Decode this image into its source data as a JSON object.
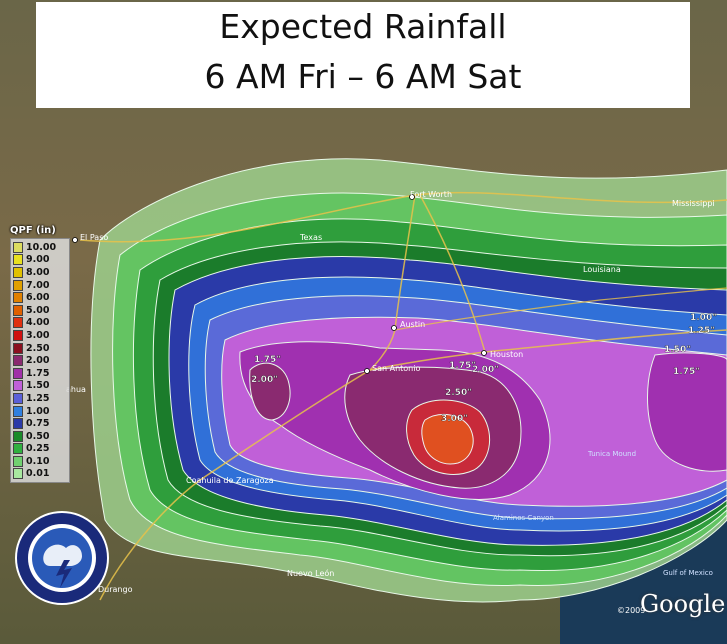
{
  "title": {
    "line1": "Expected Rainfall",
    "line2": "6 AM Fri – 6 AM Sat"
  },
  "legend": {
    "title": "QPF (in)",
    "levels": [
      {
        "label": "10.00",
        "color": "#dcdc60"
      },
      {
        "label": "9.00",
        "color": "#e8e020"
      },
      {
        "label": "8.00",
        "color": "#e0c000"
      },
      {
        "label": "7.00",
        "color": "#e0a000"
      },
      {
        "label": "6.00",
        "color": "#e08000"
      },
      {
        "label": "5.00",
        "color": "#e06000"
      },
      {
        "label": "4.00",
        "color": "#e03010"
      },
      {
        "label": "3.00",
        "color": "#d01010"
      },
      {
        "label": "2.50",
        "color": "#8a1020"
      },
      {
        "label": "2.00",
        "color": "#8a2a70"
      },
      {
        "label": "1.75",
        "color": "#a030a8"
      },
      {
        "label": "1.50",
        "color": "#c060d8"
      },
      {
        "label": "1.25",
        "color": "#5a60d8"
      },
      {
        "label": "1.00",
        "color": "#3080e0"
      },
      {
        "label": "0.75",
        "color": "#2a3aa8"
      },
      {
        "label": "0.50",
        "color": "#1a8a2a"
      },
      {
        "label": "0.25",
        "color": "#30b040"
      },
      {
        "label": "0.10",
        "color": "#70d070"
      },
      {
        "label": "0.01",
        "color": "#a8e8a0"
      }
    ]
  },
  "cities": {
    "el_paso": "El Paso",
    "fort_worth": "Fort Worth",
    "austin": "Austin",
    "san_antonio": "San Antonio",
    "houston": "Houston",
    "durango": "Durango"
  },
  "regions": {
    "texas": "Texas",
    "louisiana": "Louisiana",
    "mississippi": "Mississippi",
    "coahuila": "Coahuila de Zaragoza",
    "nuevo_leon": "Nuevo León",
    "chihuahua": "ahua",
    "gulf": "Gulf of Mexico",
    "tunica": "Tunica Mound",
    "alaminos": "Alaminos Canyon"
  },
  "amounts": {
    "a1": "1.75\"",
    "a2": "2.00\"",
    "a3": "1.75\"",
    "a4": "2.00\"",
    "a5": "2.50\"",
    "a6": "3.00\"",
    "a7": "1.00\"",
    "a8": "1.25\"",
    "a9": "1.50\"",
    "a10": "1.75\""
  },
  "attribution": {
    "google": "Google",
    "copyright": "©2009"
  }
}
